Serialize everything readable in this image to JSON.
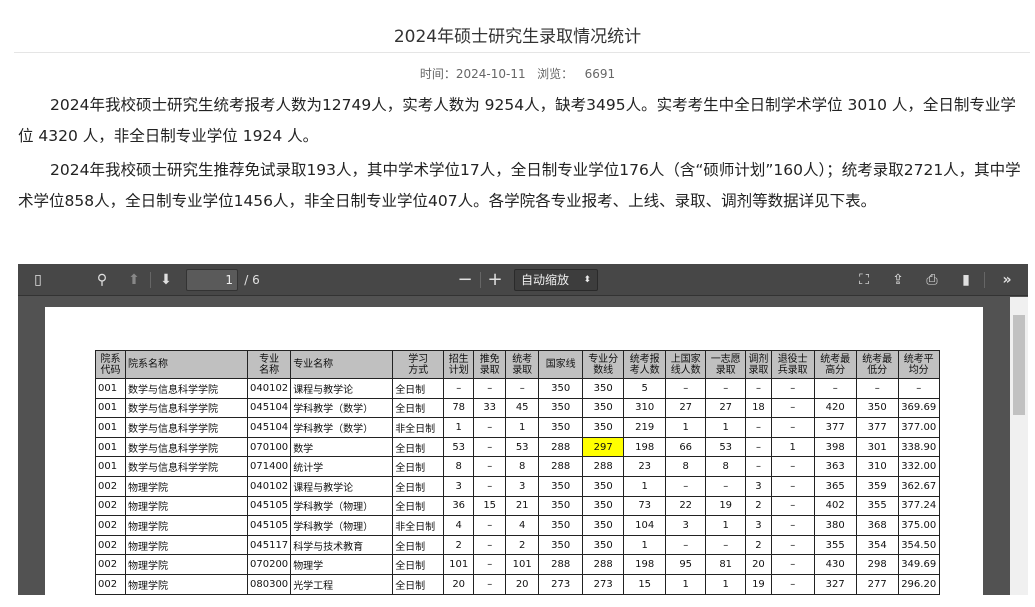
{
  "article": {
    "title": "2024年硕士研究生录取情况统计",
    "time_label": "时间：",
    "time": "2024-10-11",
    "views_label": "浏览：",
    "views": "6691",
    "paragraphs": [
      "2024年我校硕士研究生统考报考人数为12749人，实考人数为 9254人，缺考3495人。实考考生中全日制学术学位 3010 人，全日制专业学位 4320 人，非全日制专业学位 1924 人。",
      "2024年我校硕士研究生推荐免试录取193人，其中学术学位17人，全日制专业学位176人（含“硕师计划”160人）；统考录取2721人，其中学术学位858人，全日制专业学位1456人，非全日制专业学位407人。各学院各专业报考、上线、录取、调剂等数据详见下表。"
    ]
  },
  "viewer": {
    "page_current": "1",
    "page_total": "/ 6",
    "zoom": "自动缩放",
    "icons": [
      "sidebar-toggle-icon",
      "search-icon",
      "arrow-up-icon",
      "arrow-down-icon",
      "zoom-out-icon",
      "zoom-in-icon",
      "presentation-mode-icon",
      "open-file-icon",
      "print-icon",
      "bookmark-icon",
      "more-tools-icon"
    ]
  },
  "table": {
    "headers": [
      "院系代码",
      "院系名称",
      "专业名称",
      "专业名称",
      "学习方式",
      "招生计划",
      "推免录取",
      "统考录取",
      "国家线",
      "专业分数线",
      "统考报考人数",
      "上国家线人数",
      "一志愿录取",
      "调剂录取",
      "退役士兵录取",
      "统考最高分",
      "统考最低分",
      "统考平均分"
    ],
    "highlight_color": "#ffff00",
    "rows": [
      [
        "001",
        "数学与信息科学学院",
        "040102",
        "课程与教学论",
        "全日制",
        "–",
        "–",
        "–",
        "350",
        "350",
        "5",
        "–",
        "–",
        "–",
        "–",
        "–",
        "–",
        "–"
      ],
      [
        "001",
        "数学与信息科学学院",
        "045104",
        "学科教学（数学）",
        "全日制",
        "78",
        "33",
        "45",
        "350",
        "350",
        "310",
        "27",
        "27",
        "18",
        "–",
        "420",
        "350",
        "369.69"
      ],
      [
        "001",
        "数学与信息科学学院",
        "045104",
        "学科教学（数学）",
        "非全日制",
        "1",
        "–",
        "1",
        "350",
        "350",
        "219",
        "1",
        "1",
        "–",
        "–",
        "377",
        "377",
        "377.00"
      ],
      [
        "001",
        "数学与信息科学学院",
        "070100",
        "数学",
        "全日制",
        "53",
        "–",
        "53",
        "288",
        "297",
        "198",
        "66",
        "53",
        "–",
        "1",
        "398",
        "301",
        "338.90"
      ],
      [
        "001",
        "数学与信息科学学院",
        "071400",
        "统计学",
        "全日制",
        "8",
        "–",
        "8",
        "288",
        "288",
        "23",
        "8",
        "8",
        "–",
        "–",
        "363",
        "310",
        "332.00"
      ],
      [
        "002",
        "物理学院",
        "040102",
        "课程与教学论",
        "全日制",
        "3",
        "–",
        "3",
        "350",
        "350",
        "1",
        "–",
        "–",
        "3",
        "–",
        "365",
        "359",
        "362.67"
      ],
      [
        "002",
        "物理学院",
        "045105",
        "学科教学（物理）",
        "全日制",
        "36",
        "15",
        "21",
        "350",
        "350",
        "73",
        "22",
        "19",
        "2",
        "–",
        "402",
        "355",
        "377.24"
      ],
      [
        "002",
        "物理学院",
        "045105",
        "学科教学（物理）",
        "非全日制",
        "4",
        "–",
        "4",
        "350",
        "350",
        "104",
        "3",
        "1",
        "3",
        "–",
        "380",
        "368",
        "375.00"
      ],
      [
        "002",
        "物理学院",
        "045117",
        "科学与技术教育",
        "全日制",
        "2",
        "–",
        "2",
        "350",
        "350",
        "1",
        "–",
        "–",
        "2",
        "–",
        "355",
        "354",
        "354.50"
      ],
      [
        "002",
        "物理学院",
        "070200",
        "物理学",
        "全日制",
        "101",
        "–",
        "101",
        "288",
        "288",
        "198",
        "95",
        "81",
        "20",
        "–",
        "430",
        "298",
        "349.69"
      ],
      [
        "002",
        "物理学院",
        "080300",
        "光学工程",
        "全日制",
        "20",
        "–",
        "20",
        "273",
        "273",
        "15",
        "1",
        "1",
        "19",
        "–",
        "327",
        "277",
        "296.20"
      ]
    ]
  }
}
